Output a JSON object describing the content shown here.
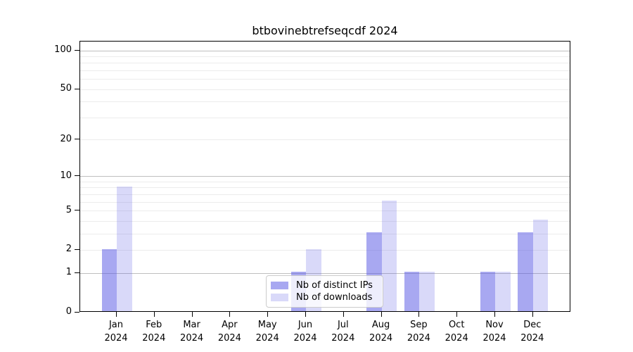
{
  "title": "btbovinebtrefseqcdf 2024",
  "chart_data": {
    "type": "bar",
    "title": "btbovinebtrefseqcdf 2024",
    "categories": [
      "Jan 2024",
      "Feb 2024",
      "Mar 2024",
      "Apr 2024",
      "May 2024",
      "Jun 2024",
      "Jul 2024",
      "Aug 2024",
      "Sep 2024",
      "Oct 2024",
      "Nov 2024",
      "Dec 2024"
    ],
    "series": [
      {
        "name": "Nb of distinct IPs",
        "color": "rgba(82,82,227,0.50)",
        "values": [
          2,
          0,
          0,
          0,
          0,
          1,
          0,
          3,
          1,
          0,
          1,
          3
        ]
      },
      {
        "name": "Nb of downloads",
        "color": "rgba(82,82,227,0.22)",
        "values": [
          8,
          0,
          0,
          0,
          0,
          2,
          0,
          6,
          1,
          0,
          1,
          4
        ]
      }
    ],
    "xlabel": "",
    "ylabel": "",
    "yscale": "log1p",
    "yticks": [
      0,
      1,
      2,
      5,
      10,
      20,
      50,
      100
    ],
    "ylim": [
      0,
      118
    ],
    "grid": "horizontal",
    "legend_position": "lower center",
    "grid_major_color": "#bfbfbf",
    "grid_minor_color": "#ececec",
    "spine_color": "#000000"
  }
}
